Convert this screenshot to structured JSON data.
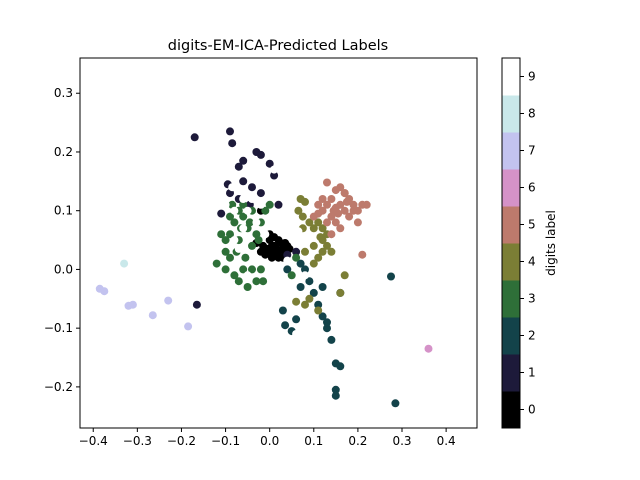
{
  "chart_data": {
    "type": "scatter",
    "title": "digits-EM-ICA-Predicted Labels",
    "xlabel": "",
    "ylabel": "",
    "xlim": [
      -0.43,
      0.47
    ],
    "ylim": [
      -0.27,
      0.36
    ],
    "xticks": [
      -0.4,
      -0.3,
      -0.2,
      -0.1,
      0.0,
      0.1,
      0.2,
      0.3,
      0.4
    ],
    "xtick_labels": [
      "−0.4",
      "−0.3",
      "−0.2",
      "−0.1",
      "0.0",
      "0.1",
      "0.2",
      "0.3",
      "0.4"
    ],
    "yticks": [
      -0.2,
      -0.1,
      0.0,
      0.1,
      0.2,
      0.3
    ],
    "ytick_labels": [
      "−0.2",
      "−0.1",
      "0.0",
      "0.1",
      "0.2",
      "0.3"
    ],
    "grid": false,
    "colorbar": {
      "label": "digits label",
      "tick_labels": [
        "0",
        "1",
        "2",
        "3",
        "4",
        "5",
        "6",
        "7",
        "8",
        "9"
      ],
      "colors": [
        "#000000",
        "#1d1a3a",
        "#13434a",
        "#2e6f38",
        "#7b7e35",
        "#bd7a6c",
        "#d592c8",
        "#c3c3ef",
        "#c9e8ea",
        "#ffffff"
      ]
    },
    "series": [
      {
        "label": 0,
        "points": [
          [
            0.0,
            0.03
          ],
          [
            0.01,
            0.04
          ],
          [
            0.02,
            0.03
          ],
          [
            0.03,
            0.035
          ],
          [
            0.015,
            0.025
          ],
          [
            0.025,
            0.045
          ],
          [
            0.005,
            0.02
          ],
          [
            0.035,
            0.03
          ],
          [
            0.04,
            0.04
          ],
          [
            -0.005,
            0.035
          ],
          [
            0.0,
            0.05
          ],
          [
            0.01,
            0.055
          ],
          [
            0.02,
            0.02
          ],
          [
            0.03,
            0.02
          ],
          [
            -0.01,
            0.025
          ],
          [
            0.045,
            0.035
          ],
          [
            -0.015,
            0.04
          ],
          [
            0.005,
            0.04
          ],
          [
            0.0,
            0.06
          ],
          [
            0.02,
            0.05
          ],
          [
            -0.02,
            0.03
          ],
          [
            0.015,
            0.035
          ],
          [
            0.035,
            0.045
          ],
          [
            -0.03,
            0.045
          ],
          [
            -0.02,
            0.1
          ]
        ]
      },
      {
        "label": 1,
        "points": [
          [
            -0.17,
            0.225
          ],
          [
            -0.09,
            0.235
          ],
          [
            -0.085,
            0.215
          ],
          [
            -0.07,
            0.175
          ],
          [
            -0.06,
            0.185
          ],
          [
            -0.03,
            0.2
          ],
          [
            -0.02,
            0.195
          ],
          [
            0.0,
            0.18
          ],
          [
            -0.04,
            0.14
          ],
          [
            -0.095,
            0.145
          ],
          [
            -0.09,
            0.13
          ],
          [
            -0.06,
            0.15
          ],
          [
            -0.11,
            0.095
          ],
          [
            -0.07,
            0.12
          ],
          [
            -0.045,
            0.11
          ],
          [
            -0.02,
            0.13
          ],
          [
            0.01,
            0.16
          ],
          [
            -0.165,
            -0.06
          ],
          [
            0.06,
            0.03
          ],
          [
            0.02,
            0.11
          ],
          [
            0.04,
            0.025
          ]
        ]
      },
      {
        "label": 2,
        "points": [
          [
            0.03,
            -0.07
          ],
          [
            0.035,
            -0.095
          ],
          [
            0.05,
            -0.105
          ],
          [
            0.06,
            -0.085
          ],
          [
            0.07,
            -0.03
          ],
          [
            0.09,
            -0.02
          ],
          [
            0.1,
            -0.04
          ],
          [
            0.11,
            -0.06
          ],
          [
            0.12,
            -0.08
          ],
          [
            0.13,
            -0.1
          ],
          [
            0.12,
            -0.03
          ],
          [
            0.14,
            -0.12
          ],
          [
            0.15,
            -0.16
          ],
          [
            0.16,
            -0.165
          ],
          [
            0.15,
            -0.205
          ],
          [
            0.15,
            -0.215
          ],
          [
            0.285,
            -0.228
          ],
          [
            0.275,
            -0.012
          ],
          [
            0.16,
            -0.04
          ],
          [
            0.13,
            -0.09
          ],
          [
            0.08,
            0.0
          ],
          [
            0.04,
            0.0
          ],
          [
            0.07,
            0.01
          ]
        ]
      },
      {
        "label": 3,
        "points": [
          [
            -0.12,
            0.01
          ],
          [
            -0.1,
            0.03
          ],
          [
            -0.09,
            0.06
          ],
          [
            -0.08,
            0.08
          ],
          [
            -0.07,
            0.05
          ],
          [
            -0.06,
            0.09
          ],
          [
            -0.05,
            0.07
          ],
          [
            -0.04,
            0.04
          ],
          [
            -0.03,
            0.06
          ],
          [
            -0.02,
            0.08
          ],
          [
            -0.01,
            0.1
          ],
          [
            0.0,
            0.11
          ],
          [
            -0.1,
            0.0
          ],
          [
            -0.08,
            -0.01
          ],
          [
            -0.07,
            -0.02
          ],
          [
            -0.05,
            -0.03
          ],
          [
            -0.04,
            0.0
          ],
          [
            -0.03,
            -0.02
          ],
          [
            -0.02,
            0.0
          ],
          [
            -0.09,
            0.09
          ],
          [
            -0.11,
            0.06
          ],
          [
            -0.06,
            0.11
          ],
          [
            -0.04,
            0.1
          ],
          [
            -0.075,
            0.03
          ],
          [
            -0.055,
            0.02
          ],
          [
            -0.1,
            0.05
          ],
          [
            -0.085,
            0.11
          ],
          [
            -0.065,
            0.07
          ],
          [
            -0.045,
            0.08
          ],
          [
            -0.025,
            0.05
          ],
          [
            -0.06,
            0.0
          ],
          [
            -0.015,
            -0.02
          ],
          [
            -0.09,
            0.02
          ],
          [
            -0.07,
            0.1
          ],
          [
            0.05,
            -0.01
          ],
          [
            0.06,
            0.02
          ]
        ]
      },
      {
        "label": 4,
        "points": [
          [
            0.07,
            0.12
          ],
          [
            0.08,
            0.115
          ],
          [
            0.065,
            0.1
          ],
          [
            0.075,
            0.09
          ],
          [
            0.09,
            0.08
          ],
          [
            0.1,
            0.07
          ],
          [
            0.11,
            0.08
          ],
          [
            0.12,
            0.07
          ],
          [
            0.13,
            0.06
          ],
          [
            0.12,
            0.05
          ],
          [
            0.13,
            0.04
          ],
          [
            0.14,
            0.03
          ],
          [
            0.1,
            0.04
          ],
          [
            0.11,
            0.02
          ],
          [
            0.1,
            0.01
          ],
          [
            0.08,
            0.03
          ],
          [
            0.12,
            0.03
          ],
          [
            0.17,
            -0.01
          ],
          [
            0.09,
            -0.05
          ],
          [
            0.11,
            -0.07
          ],
          [
            0.16,
            -0.04
          ],
          [
            0.08,
            -0.06
          ],
          [
            0.06,
            -0.055
          ],
          [
            0.075,
            0.07
          ],
          [
            0.115,
            0.055
          ]
        ]
      },
      {
        "label": 5,
        "points": [
          [
            0.13,
            0.148
          ],
          [
            0.15,
            0.135
          ],
          [
            0.16,
            0.14
          ],
          [
            0.17,
            0.13
          ],
          [
            0.18,
            0.12
          ],
          [
            0.14,
            0.12
          ],
          [
            0.13,
            0.11
          ],
          [
            0.12,
            0.1
          ],
          [
            0.11,
            0.095
          ],
          [
            0.1,
            0.09
          ],
          [
            0.15,
            0.105
          ],
          [
            0.16,
            0.11
          ],
          [
            0.17,
            0.1
          ],
          [
            0.19,
            0.11
          ],
          [
            0.2,
            0.1
          ],
          [
            0.21,
            0.11
          ],
          [
            0.14,
            0.09
          ],
          [
            0.15,
            0.08
          ],
          [
            0.13,
            0.08
          ],
          [
            0.155,
            0.095
          ],
          [
            0.175,
            0.115
          ],
          [
            0.12,
            0.12
          ],
          [
            0.18,
            0.09
          ],
          [
            0.2,
            0.08
          ],
          [
            0.16,
            0.07
          ],
          [
            0.14,
            0.06
          ],
          [
            0.22,
            0.11
          ],
          [
            0.21,
            0.025
          ],
          [
            0.11,
            0.11
          ],
          [
            0.17,
            0.13
          ],
          [
            0.19,
            0.1
          ],
          [
            0.145,
            0.1
          ]
        ]
      },
      {
        "label": 6,
        "points": [
          [
            0.36,
            -0.135
          ]
        ]
      },
      {
        "label": 7,
        "points": [
          [
            -0.385,
            -0.033
          ],
          [
            -0.375,
            -0.037
          ],
          [
            -0.32,
            -0.062
          ],
          [
            -0.31,
            -0.06
          ],
          [
            -0.265,
            -0.078
          ],
          [
            -0.23,
            -0.053
          ],
          [
            -0.185,
            -0.097
          ]
        ]
      },
      {
        "label": 8,
        "points": [
          [
            -0.33,
            0.01
          ]
        ]
      },
      {
        "label": 9,
        "points": [
          [
            -0.11,
            0.12
          ],
          [
            -0.1,
            0.11
          ],
          [
            -0.08,
            0.1
          ],
          [
            -0.06,
            0.12
          ],
          [
            -0.05,
            0.1
          ],
          [
            -0.04,
            0.12
          ],
          [
            -0.02,
            0.11
          ],
          [
            -0.03,
            0.08
          ],
          [
            -0.06,
            0.07
          ],
          [
            -0.08,
            0.05
          ],
          [
            -0.01,
            0.06
          ],
          [
            0.0,
            0.075
          ],
          [
            -0.1,
            -0.08
          ],
          [
            -0.09,
            -0.05
          ],
          [
            -0.07,
            -0.04
          ],
          [
            -0.05,
            -0.01
          ],
          [
            0.01,
            0.17
          ],
          [
            0.0,
            0.14
          ],
          [
            0.06,
            -0.11
          ],
          [
            0.065,
            0.065
          ],
          [
            0.08,
            -0.01
          ],
          [
            -0.085,
            0.14
          ],
          [
            -0.07,
            0.035
          ],
          [
            0.04,
            0.015
          ]
        ]
      }
    ]
  }
}
